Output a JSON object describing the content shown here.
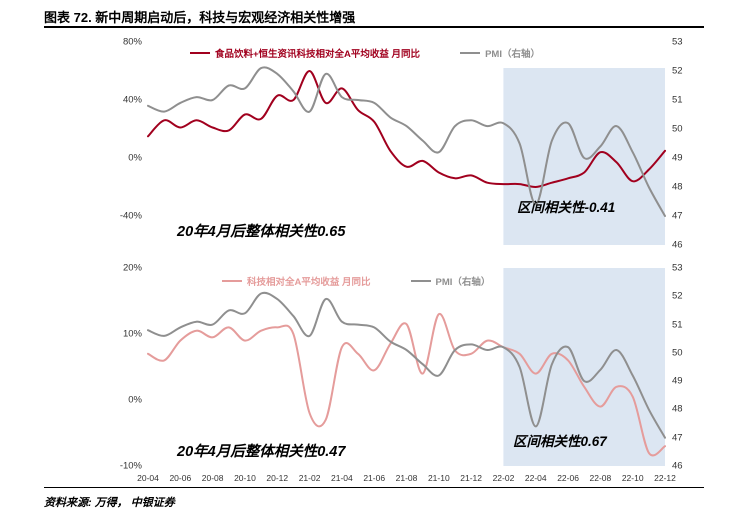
{
  "title": "图表 72. 新中周期启动后，科技与宏观经济相关性增强",
  "source": "资料来源: 万得， 中银证券",
  "colors": {
    "series_red": "#A1001E",
    "series_pink": "#E59C9B",
    "series_gray": "#8F8F8F",
    "highlight": "#DCE6F2"
  },
  "chart_data": [
    {
      "type": "line",
      "x": [
        "20-04",
        "20-05",
        "20-06",
        "20-07",
        "20-08",
        "20-09",
        "20-10",
        "20-11",
        "20-12",
        "21-01",
        "21-02",
        "21-03",
        "21-04",
        "21-05",
        "21-06",
        "21-07",
        "21-08",
        "21-09",
        "21-10",
        "21-11",
        "21-12",
        "22-01",
        "22-02",
        "22-03",
        "22-04",
        "22-05",
        "22-06",
        "22-07",
        "22-08",
        "22-09",
        "22-10",
        "22-11",
        "22-12"
      ],
      "series": [
        {
          "name": "食品饮料+恒生资讯科技相对全A平均收益 月同比",
          "axis": "left",
          "color_key": "series_red",
          "values": [
            15,
            26,
            21,
            26,
            21,
            19,
            30,
            27,
            43,
            40,
            60,
            38,
            48,
            33,
            25,
            5,
            -6,
            -2,
            -10,
            -14,
            -12,
            -17,
            -18,
            -18,
            -20,
            -17,
            -14,
            -10,
            4,
            -3,
            -16,
            -8,
            5
          ]
        },
        {
          "name": "PMI（右轴）",
          "axis": "right",
          "color_key": "series_gray",
          "values": [
            50.8,
            50.6,
            50.9,
            51.1,
            51.0,
            51.5,
            51.4,
            52.1,
            51.9,
            51.3,
            50.6,
            51.9,
            51.1,
            51.0,
            50.9,
            50.4,
            50.1,
            49.6,
            49.2,
            50.1,
            50.3,
            50.1,
            50.2,
            49.5,
            47.4,
            49.6,
            50.2,
            49.0,
            49.4,
            50.1,
            49.2,
            48.0,
            47.0
          ]
        }
      ],
      "left_axis": {
        "min": -60,
        "max": 80,
        "ticks": [
          {
            "value": 80,
            "label": "80%"
          },
          {
            "value": 40,
            "label": "40%"
          },
          {
            "value": 0,
            "label": "0%"
          },
          {
            "value": -40,
            "label": "-40%"
          }
        ]
      },
      "right_axis": {
        "min": 46,
        "max": 53,
        "ticks": [
          {
            "value": 53,
            "label": "53"
          },
          {
            "value": 52,
            "label": "52"
          },
          {
            "value": 51,
            "label": "51"
          },
          {
            "value": 50,
            "label": "50"
          },
          {
            "value": 49,
            "label": "49"
          },
          {
            "value": 48,
            "label": "48"
          },
          {
            "value": 47,
            "label": "47"
          },
          {
            "value": 46,
            "label": "46"
          }
        ]
      },
      "highlight_region": {
        "from": "22-02",
        "to": "22-12"
      },
      "annotations": [
        {
          "text": "20年4月后整体相关性0.65"
        },
        {
          "text": "区间相关性-0.41"
        }
      ]
    },
    {
      "type": "line",
      "x": [
        "20-04",
        "20-05",
        "20-06",
        "20-07",
        "20-08",
        "20-09",
        "20-10",
        "20-11",
        "20-12",
        "21-01",
        "21-02",
        "21-03",
        "21-04",
        "21-05",
        "21-06",
        "21-07",
        "21-08",
        "21-09",
        "21-10",
        "21-11",
        "21-12",
        "22-01",
        "22-02",
        "22-03",
        "22-04",
        "22-05",
        "22-06",
        "22-07",
        "22-08",
        "22-09",
        "22-10",
        "22-11",
        "22-12"
      ],
      "series": [
        {
          "name": "科技相对全A平均收益 月同比",
          "axis": "left",
          "color_key": "series_pink",
          "values": [
            7,
            6,
            9,
            10.5,
            9.5,
            11,
            9,
            10.5,
            11,
            10,
            -2,
            -3,
            8,
            7,
            4.5,
            8.5,
            11.5,
            4,
            13,
            7.5,
            7,
            9,
            8,
            7,
            4,
            7,
            6,
            2,
            -1,
            2,
            0.5,
            -8,
            -7
          ]
        },
        {
          "name": "PMI（右轴）",
          "axis": "right",
          "color_key": "series_gray",
          "values": [
            50.8,
            50.6,
            50.9,
            51.1,
            51.0,
            51.5,
            51.4,
            52.1,
            51.9,
            51.3,
            50.6,
            51.9,
            51.1,
            51.0,
            50.9,
            50.4,
            50.1,
            49.6,
            49.2,
            50.1,
            50.3,
            50.1,
            50.2,
            49.5,
            47.4,
            49.6,
            50.2,
            49.0,
            49.4,
            50.1,
            49.2,
            48.0,
            47.0
          ]
        }
      ],
      "left_axis": {
        "min": -10,
        "max": 20,
        "ticks": [
          {
            "value": 20,
            "label": "20%"
          },
          {
            "value": 10,
            "label": "10%"
          },
          {
            "value": 0,
            "label": "0%"
          },
          {
            "value": -10,
            "label": "-10%"
          }
        ]
      },
      "right_axis": {
        "min": 46,
        "max": 53,
        "ticks": [
          {
            "value": 53,
            "label": "53"
          },
          {
            "value": 52,
            "label": "52"
          },
          {
            "value": 51,
            "label": "51"
          },
          {
            "value": 50,
            "label": "50"
          },
          {
            "value": 49,
            "label": "49"
          },
          {
            "value": 48,
            "label": "48"
          },
          {
            "value": 47,
            "label": "47"
          },
          {
            "value": 46,
            "label": "46"
          }
        ]
      },
      "highlight_region": {
        "from": "22-02",
        "to": "22-12"
      },
      "annotations": [
        {
          "text": "20年4月后整体相关性0.47"
        },
        {
          "text": "区间相关性0.67"
        }
      ]
    }
  ]
}
